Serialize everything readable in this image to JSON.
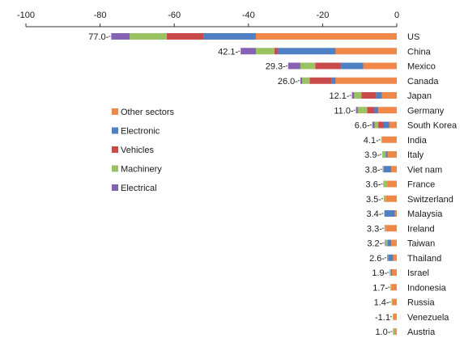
{
  "chart_data": {
    "type": "bar",
    "orientation": "horizontal",
    "stacked": true,
    "title": "",
    "xlabel": "",
    "ylabel": "",
    "xlim": [
      -100,
      0
    ],
    "x_ticks": [
      -100,
      -80,
      -60,
      -40,
      -20,
      0
    ],
    "grid": false,
    "legend_position": "left-middle",
    "categories": [
      "US",
      "China",
      "Mexico",
      "Canada",
      "Japan",
      "Germany",
      "South Korea",
      "India",
      "Italy",
      "Viet nam",
      "France",
      "Switzerland",
      "Malaysia",
      "Ireland",
      "Taiwan",
      "Thailand",
      "Israel",
      "Indonesia",
      "Russia",
      "Venezuela",
      "Austria"
    ],
    "total_labels": [
      "77.0-",
      "42.1-",
      "29.3-",
      "26.0-",
      "12.1-",
      "11.0-",
      "6.6-",
      "4.1-",
      "3.9-",
      "3.8-",
      "3.6-",
      "3.5-",
      "3.4-",
      "3.3-",
      "3.2-",
      "2.6-",
      "1.9-",
      "1.7-",
      "1.4-",
      "-1.1",
      "1.0-"
    ],
    "series": [
      {
        "name": "Other sectors",
        "color": "#F0884A",
        "values": [
          -38.0,
          -16.5,
          -9.0,
          -16.5,
          -4.0,
          -5.0,
          -2.0,
          -4.0,
          -2.5,
          -1.5,
          -2.5,
          -3.0,
          -0.5,
          -3.0,
          -1.5,
          -1.0,
          -1.3,
          -1.5,
          -1.2,
          -0.9,
          -0.4
        ]
      },
      {
        "name": "Electronic",
        "color": "#4F80C4",
        "values": [
          -14.0,
          -15.5,
          -6.0,
          -1.0,
          -1.5,
          -1.0,
          -1.5,
          0.0,
          -0.5,
          -2.0,
          0.0,
          0.0,
          -2.8,
          0.0,
          -1.0,
          -1.3,
          -0.3,
          0.0,
          0.0,
          0.0,
          0.0
        ]
      },
      {
        "name": "Vehicles",
        "color": "#C94A4A",
        "values": [
          -10.0,
          -1.0,
          -7.0,
          -6.0,
          -4.0,
          -2.0,
          -1.5,
          0.0,
          0.0,
          0.0,
          0.0,
          0.0,
          0.0,
          0.0,
          0.0,
          0.0,
          0.0,
          0.0,
          0.0,
          0.0,
          0.0
        ]
      },
      {
        "name": "Machinery",
        "color": "#99C260",
        "values": [
          -10.0,
          -5.0,
          -4.0,
          -2.0,
          -2.0,
          -2.5,
          -1.0,
          -0.2,
          -0.9,
          -0.2,
          -1.0,
          -0.5,
          -0.1,
          -0.2,
          -0.5,
          -0.2,
          -0.2,
          -0.2,
          -0.2,
          -0.2,
          -0.5
        ]
      },
      {
        "name": "Electrical",
        "color": "#8661B4",
        "values": [
          -5.0,
          -4.1,
          -3.3,
          -0.5,
          -0.6,
          -0.5,
          -0.6,
          0.0,
          0.0,
          -0.1,
          -0.1,
          0.0,
          0.0,
          -0.1,
          -0.2,
          -0.1,
          -0.1,
          0.0,
          0.0,
          0.0,
          -0.1
        ]
      }
    ]
  }
}
